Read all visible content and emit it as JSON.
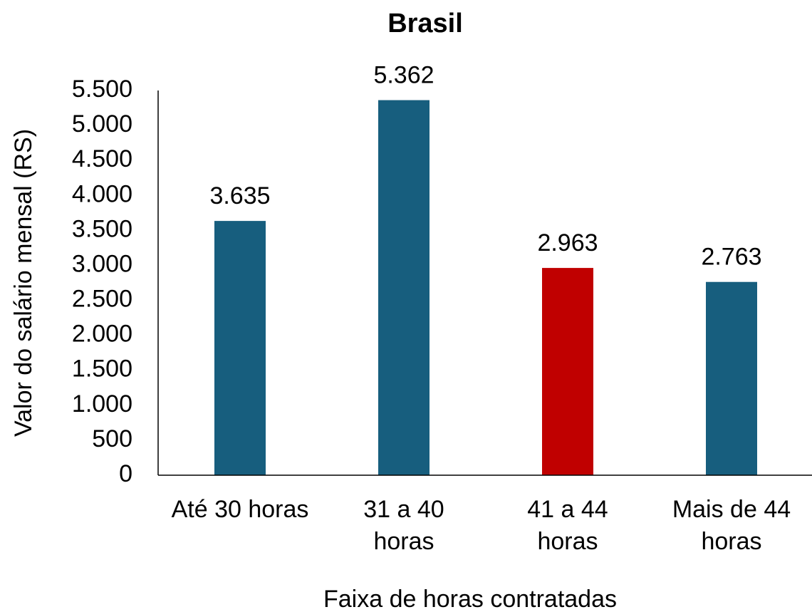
{
  "chart_data": {
    "type": "bar",
    "title": "Brasil",
    "categories": [
      [
        "Até 30 horas"
      ],
      [
        "31 a 40",
        "horas"
      ],
      [
        "41 a 44",
        "horas"
      ],
      [
        "Mais de 44",
        "horas"
      ]
    ],
    "values": [
      3635,
      5362,
      2963,
      2763
    ],
    "value_labels": [
      "3.635",
      "5.362",
      "2.963",
      "2.763"
    ],
    "colors": [
      "#175e7e",
      "#175e7e",
      "#c00000",
      "#175e7e"
    ],
    "xlabel": "Faixa de horas contratadas",
    "ylabel": "Valor do salário mensal (RS)",
    "ylim": [
      0,
      5500
    ],
    "yticks": [
      0,
      500,
      {
        "value": 1000,
        "label": "1.000"
      },
      {
        "value": 1500,
        "label": "1.500"
      },
      {
        "value": 2000,
        "label": "2.000"
      },
      {
        "value": 2500,
        "label": "2.500"
      },
      {
        "value": 3000,
        "label": "3.000"
      },
      {
        "value": 3500,
        "label": "3.500"
      },
      {
        "value": 4000,
        "label": "4.000"
      },
      {
        "value": 4500,
        "label": "4.500"
      },
      {
        "value": 5000,
        "label": "5.000"
      },
      {
        "value": 5500,
        "label": "5.500"
      }
    ],
    "grid": false
  }
}
